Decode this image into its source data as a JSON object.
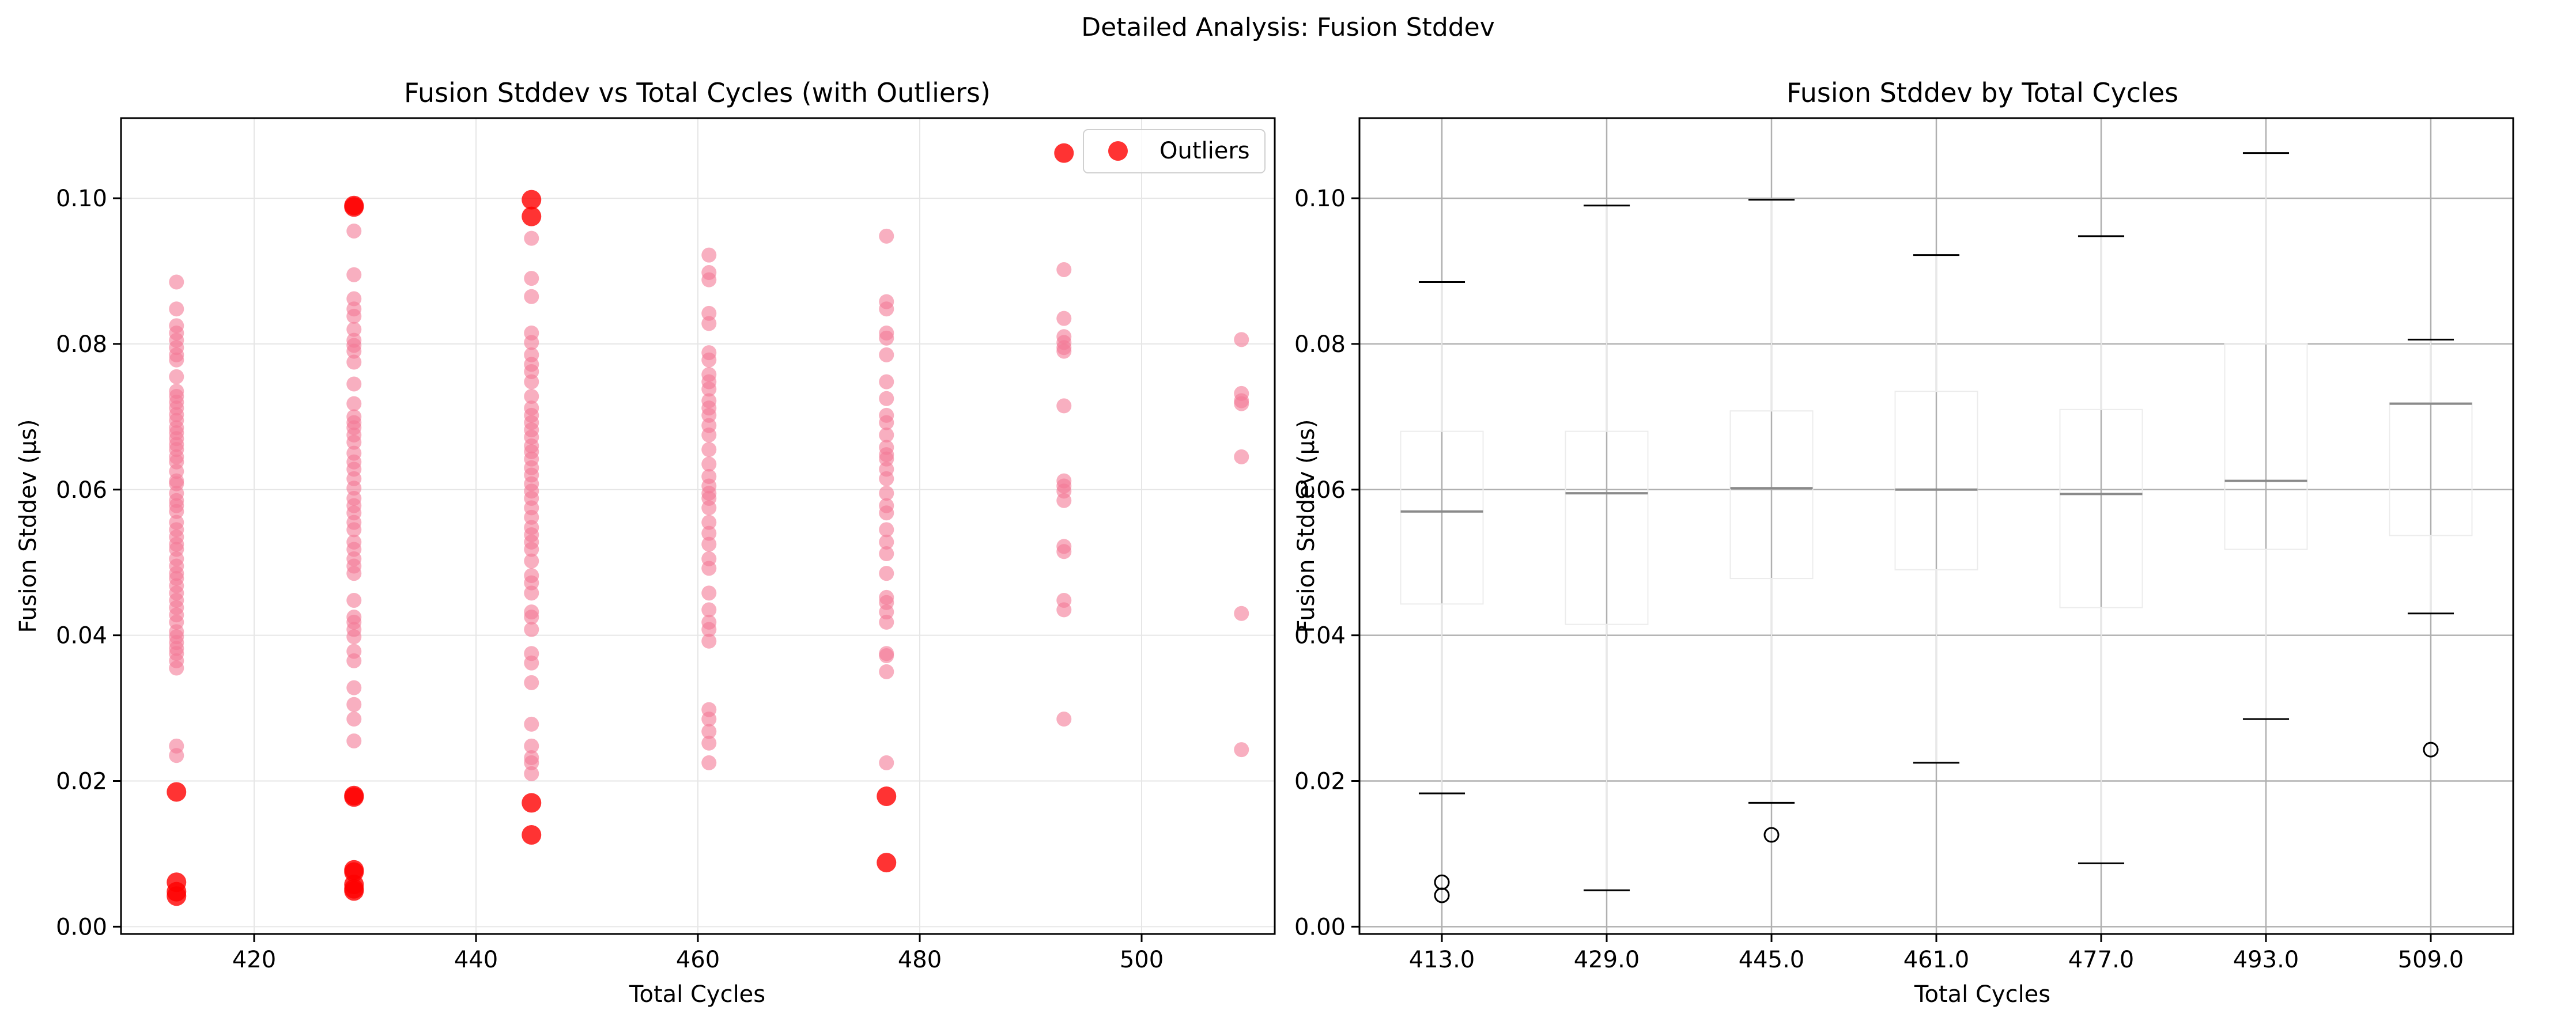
{
  "figure": {
    "suptitle": "Detailed Analysis: Fusion Stddev"
  },
  "chart_data": [
    {
      "type": "scatter",
      "title": "Fusion Stddev vs Total Cycles (with Outliers)",
      "xlabel": "Total Cycles",
      "ylabel": "Fusion Stddev (µs)",
      "xlim": [
        408,
        512
      ],
      "ylim": [
        -0.001,
        0.111
      ],
      "xticks": [
        420,
        440,
        460,
        480,
        500
      ],
      "yticks": [
        0.0,
        0.02,
        0.04,
        0.06,
        0.08,
        0.1
      ],
      "grid": true,
      "legend": {
        "position": "top-right",
        "entries": [
          "Outliers"
        ]
      },
      "colors": {
        "points": "#f47a96",
        "outliers": "#ff0000"
      },
      "points": [
        {
          "x": 413,
          "y": [
            0.0885,
            0.0848,
            0.0825,
            0.0815,
            0.0805,
            0.0795,
            0.0785,
            0.0778,
            0.0755,
            0.0735,
            0.0728,
            0.072,
            0.0712,
            0.0703,
            0.0695,
            0.0685,
            0.0678,
            0.067,
            0.0662,
            0.0655,
            0.0645,
            0.0638,
            0.0625,
            0.0612,
            0.0608,
            0.0595,
            0.0585,
            0.0578,
            0.057,
            0.0555,
            0.0545,
            0.0535,
            0.0525,
            0.0518,
            0.0505,
            0.0495,
            0.0485,
            0.0478,
            0.0468,
            0.0458,
            0.0448,
            0.0438,
            0.0428,
            0.0418,
            0.0405,
            0.0398,
            0.039,
            0.0382,
            0.0375,
            0.0365,
            0.0355,
            0.0248,
            0.0235
          ]
        },
        {
          "x": 429,
          "y": [
            0.0955,
            0.0895,
            0.0862,
            0.0848,
            0.0838,
            0.082,
            0.0805,
            0.0798,
            0.079,
            0.0775,
            0.0745,
            0.0718,
            0.07,
            0.0692,
            0.0685,
            0.0675,
            0.0665,
            0.065,
            0.0638,
            0.0628,
            0.0615,
            0.0602,
            0.0588,
            0.0578,
            0.0568,
            0.0555,
            0.0545,
            0.0528,
            0.0518,
            0.0505,
            0.0495,
            0.0485,
            0.0448,
            0.0425,
            0.0418,
            0.0408,
            0.0398,
            0.0378,
            0.0365,
            0.0328,
            0.0305,
            0.0285,
            0.0255
          ]
        },
        {
          "x": 445,
          "y": [
            0.0945,
            0.089,
            0.0865,
            0.0815,
            0.0802,
            0.0785,
            0.0772,
            0.0762,
            0.0748,
            0.0728,
            0.0712,
            0.0702,
            0.0692,
            0.0682,
            0.0672,
            0.066,
            0.0652,
            0.0642,
            0.063,
            0.062,
            0.0608,
            0.0598,
            0.0588,
            0.0575,
            0.0562,
            0.0548,
            0.0538,
            0.0528,
            0.0518,
            0.0502,
            0.0482,
            0.0472,
            0.0458,
            0.0432,
            0.0425,
            0.0408,
            0.0375,
            0.0362,
            0.0335,
            0.0278,
            0.0248,
            0.0232,
            0.0225,
            0.021
          ]
        },
        {
          "x": 461,
          "y": [
            0.0922,
            0.0898,
            0.0888,
            0.0842,
            0.0828,
            0.0788,
            0.0778,
            0.0758,
            0.0748,
            0.0738,
            0.0722,
            0.0712,
            0.0702,
            0.0688,
            0.0675,
            0.0655,
            0.0635,
            0.0618,
            0.0605,
            0.0595,
            0.0588,
            0.0575,
            0.0555,
            0.054,
            0.0525,
            0.0505,
            0.0492,
            0.0458,
            0.0435,
            0.0418,
            0.0408,
            0.0392,
            0.0298,
            0.0285,
            0.0268,
            0.0252,
            0.0225
          ]
        },
        {
          "x": 477,
          "y": [
            0.0948,
            0.0858,
            0.0848,
            0.0815,
            0.0808,
            0.0785,
            0.0748,
            0.0725,
            0.0702,
            0.0692,
            0.0675,
            0.0658,
            0.0648,
            0.0642,
            0.0628,
            0.0615,
            0.0595,
            0.0578,
            0.0568,
            0.0545,
            0.0528,
            0.0512,
            0.0485,
            0.0452,
            0.0445,
            0.0432,
            0.0418,
            0.0375,
            0.0372,
            0.035,
            0.0225
          ]
        },
        {
          "x": 493,
          "y": [
            0.0902,
            0.0835,
            0.081,
            0.0802,
            0.0795,
            0.079,
            0.0715,
            0.0612,
            0.0605,
            0.0598,
            0.0585,
            0.0522,
            0.0515,
            0.0448,
            0.0435,
            0.0285
          ]
        },
        {
          "x": 509,
          "y": [
            0.0806,
            0.0732,
            0.0722,
            0.0718,
            0.0645,
            0.043,
            0.0243
          ]
        }
      ],
      "outliers": [
        {
          "x": 413,
          "y": [
            0.0185,
            0.0061,
            0.0048,
            0.0042
          ]
        },
        {
          "x": 429,
          "y": [
            0.099,
            0.0988,
            0.018,
            0.0178,
            0.0078,
            0.0075,
            0.0058,
            0.0052,
            0.0049
          ]
        },
        {
          "x": 445,
          "y": [
            0.0998,
            0.0975,
            0.017,
            0.0126
          ]
        },
        {
          "x": 477,
          "y": [
            0.0179,
            0.0088
          ]
        },
        {
          "x": 493,
          "y": [
            0.1062
          ]
        }
      ]
    },
    {
      "type": "box",
      "title": "Fusion Stddev by Total Cycles",
      "xlabel": "Total Cycles",
      "ylabel": "Fusion Stddev (µs)",
      "ylim": [
        -0.001,
        0.111
      ],
      "yticks": [
        0.0,
        0.02,
        0.04,
        0.06,
        0.08,
        0.1
      ],
      "grid": true,
      "categories": [
        "413.0",
        "429.0",
        "445.0",
        "461.0",
        "477.0",
        "493.0",
        "509.0"
      ],
      "boxes": [
        {
          "category": "413.0",
          "whislo": 0.0183,
          "q1": 0.0443,
          "med": 0.057,
          "q3": 0.068,
          "whishi": 0.0885,
          "fliers": [
            0.0061,
            0.0043
          ]
        },
        {
          "category": "429.0",
          "whislo": 0.005,
          "q1": 0.0415,
          "med": 0.0595,
          "q3": 0.068,
          "whishi": 0.099,
          "fliers": []
        },
        {
          "category": "445.0",
          "whislo": 0.017,
          "q1": 0.0478,
          "med": 0.0602,
          "q3": 0.0708,
          "whishi": 0.0998,
          "fliers": [
            0.0126
          ]
        },
        {
          "category": "461.0",
          "whislo": 0.0225,
          "q1": 0.049,
          "med": 0.06,
          "q3": 0.0735,
          "whishi": 0.0922,
          "fliers": []
        },
        {
          "category": "477.0",
          "whislo": 0.0087,
          "q1": 0.0438,
          "med": 0.0594,
          "q3": 0.071,
          "whishi": 0.0948,
          "fliers": []
        },
        {
          "category": "493.0",
          "whislo": 0.0285,
          "q1": 0.0518,
          "med": 0.0612,
          "q3": 0.08,
          "whishi": 0.1062,
          "fliers": []
        },
        {
          "category": "509.0",
          "whislo": 0.043,
          "q1": 0.0537,
          "med": 0.0718,
          "q3": 0.0719,
          "whishi": 0.0806,
          "fliers": [
            0.0243
          ]
        }
      ]
    }
  ]
}
